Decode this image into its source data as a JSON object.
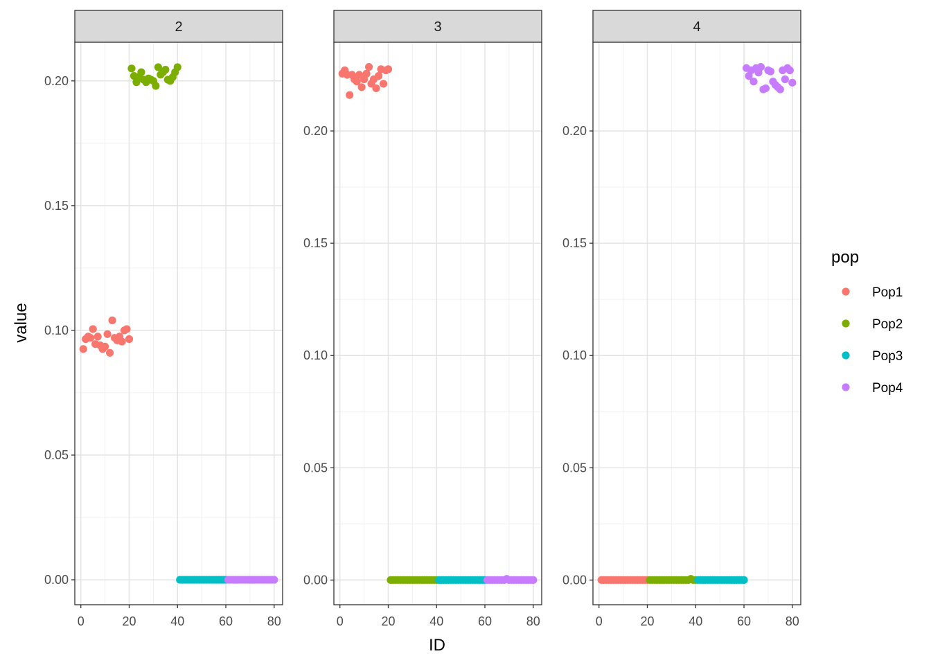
{
  "chart_data": {
    "type": "scatter",
    "facet_by": "K",
    "xlabel": "ID",
    "ylabel": "value",
    "x_ticks": [
      0,
      20,
      40,
      60,
      80
    ],
    "xlim": [
      -2.5,
      83.5
    ],
    "grid": true,
    "legend": {
      "title": "pop",
      "position": "right",
      "entries": [
        {
          "name": "Pop1",
          "color": "#F8766D"
        },
        {
          "name": "Pop2",
          "color": "#7CAE00"
        },
        {
          "name": "Pop3",
          "color": "#00BFC4"
        },
        {
          "name": "Pop4",
          "color": "#C77CFF"
        }
      ]
    },
    "facets": [
      {
        "label": "2",
        "ylim": [
          -0.01,
          0.2155
        ],
        "y_ticks": [
          0.0,
          0.05,
          0.1,
          0.15,
          0.2
        ],
        "y_tick_labels": [
          "0.00",
          "0.05",
          "0.10",
          "0.15",
          "0.20"
        ],
        "series": [
          {
            "pop": "Pop1",
            "x": [
              1,
              2,
              3,
              4,
              5,
              6,
              7,
              8,
              9,
              10,
              11,
              12,
              13,
              14,
              15,
              16,
              17,
              18,
              19,
              20
            ],
            "y": [
              0.0925,
              0.0965,
              0.0975,
              0.097,
              0.1005,
              0.0945,
              0.0975,
              0.094,
              0.0925,
              0.0935,
              0.0985,
              0.091,
              0.104,
              0.097,
              0.096,
              0.0975,
              0.0955,
              0.1,
              0.1005,
              0.0965
            ]
          },
          {
            "pop": "Pop2",
            "x": [
              21,
              22,
              23,
              24,
              25,
              26,
              27,
              28,
              29,
              30,
              31,
              32,
              33,
              34,
              35,
              36,
              37,
              38,
              39,
              40
            ],
            "y": [
              0.205,
              0.202,
              0.1995,
              0.2015,
              0.2035,
              0.2005,
              0.1995,
              0.201,
              0.2005,
              0.2,
              0.198,
              0.2055,
              0.2025,
              0.2035,
              0.2045,
              0.2005,
              0.2,
              0.2015,
              0.2035,
              0.2055
            ]
          },
          {
            "pop": "Pop3",
            "x": [
              41,
              42,
              43,
              44,
              45,
              46,
              47,
              48,
              49,
              50,
              51,
              52,
              53,
              54,
              55,
              56,
              57,
              58,
              59,
              60
            ],
            "y": [
              0,
              0,
              0,
              0,
              0,
              0,
              0,
              0,
              0,
              0,
              0,
              0,
              0,
              0,
              0,
              0,
              0,
              0,
              0,
              0
            ]
          },
          {
            "pop": "Pop4",
            "x": [
              61,
              62,
              63,
              64,
              65,
              66,
              67,
              68,
              69,
              70,
              71,
              72,
              73,
              74,
              75,
              76,
              77,
              78,
              79,
              80
            ],
            "y": [
              0,
              0,
              0,
              0,
              0,
              0,
              0,
              0,
              0,
              0,
              0,
              0,
              0,
              0,
              0,
              0,
              0,
              0,
              0,
              0
            ]
          }
        ]
      },
      {
        "label": "3",
        "ylim": [
          -0.011,
          0.2395
        ],
        "y_ticks": [
          0.0,
          0.05,
          0.1,
          0.15,
          0.2
        ],
        "y_tick_labels": [
          "0.00",
          "0.05",
          "0.10",
          "0.15",
          "0.20"
        ],
        "series": [
          {
            "pop": "Pop1",
            "x": [
              1,
              2,
              3,
              4,
              5,
              6,
              7,
              8,
              9,
              10,
              11,
              12,
              13,
              14,
              15,
              16,
              17,
              18,
              19,
              20
            ],
            "y": [
              0.2255,
              0.227,
              0.225,
              0.216,
              0.225,
              0.223,
              0.222,
              0.225,
              0.2195,
              0.223,
              0.2255,
              0.2285,
              0.221,
              0.223,
              0.219,
              0.2245,
              0.2275,
              0.221,
              0.227,
              0.2275
            ]
          },
          {
            "pop": "Pop2",
            "x": [
              21,
              22,
              23,
              24,
              25,
              26,
              27,
              28,
              29,
              30,
              31,
              32,
              33,
              34,
              35,
              36,
              37,
              38,
              39,
              40
            ],
            "y": [
              0,
              0,
              0,
              0,
              0,
              0,
              0,
              0,
              0,
              0,
              0,
              0,
              0,
              0,
              0,
              0,
              0,
              0,
              0,
              0
            ]
          },
          {
            "pop": "Pop3",
            "x": [
              41,
              42,
              43,
              44,
              45,
              46,
              47,
              48,
              49,
              50,
              51,
              52,
              53,
              54,
              55,
              56,
              57,
              58,
              59,
              60
            ],
            "y": [
              0,
              0,
              0,
              0,
              0,
              0,
              0,
              0,
              0,
              0,
              0,
              0,
              0,
              0,
              0,
              0,
              0,
              0,
              0,
              0
            ]
          },
          {
            "pop": "Pop4",
            "x": [
              61,
              62,
              63,
              64,
              65,
              66,
              67,
              68,
              69,
              70,
              71,
              72,
              73,
              74,
              75,
              76,
              77,
              78,
              79,
              80
            ],
            "y": [
              0,
              0,
              0,
              0,
              0,
              0,
              0,
              0,
              0.0005,
              0,
              0,
              0,
              0,
              0,
              0,
              0,
              0,
              0,
              0,
              0
            ]
          }
        ]
      },
      {
        "label": "4",
        "ylim": [
          -0.011,
          0.2395
        ],
        "y_ticks": [
          0.0,
          0.05,
          0.1,
          0.15,
          0.2
        ],
        "y_tick_labels": [
          "0.00",
          "0.05",
          "0.10",
          "0.15",
          "0.20"
        ],
        "series": [
          {
            "pop": "Pop1",
            "x": [
              1,
              2,
              3,
              4,
              5,
              6,
              7,
              8,
              9,
              10,
              11,
              12,
              13,
              14,
              15,
              16,
              17,
              18,
              19,
              20
            ],
            "y": [
              0,
              0,
              0,
              0,
              0,
              0,
              0,
              0,
              0,
              0,
              0,
              0,
              0,
              0,
              0,
              0,
              0,
              0,
              0,
              0
            ]
          },
          {
            "pop": "Pop2",
            "x": [
              21,
              22,
              23,
              24,
              25,
              26,
              27,
              28,
              29,
              30,
              31,
              32,
              33,
              34,
              35,
              36,
              37,
              38,
              39,
              40
            ],
            "y": [
              0,
              0,
              0,
              0,
              0,
              0,
              0,
              0,
              0,
              0,
              0,
              0,
              0,
              0,
              0,
              0,
              0,
              0.0005,
              0,
              0
            ]
          },
          {
            "pop": "Pop3",
            "x": [
              41,
              42,
              43,
              44,
              45,
              46,
              47,
              48,
              49,
              50,
              51,
              52,
              53,
              54,
              55,
              56,
              57,
              58,
              59,
              60
            ],
            "y": [
              0,
              0,
              0,
              0,
              0,
              0,
              0,
              0,
              0,
              0,
              0,
              0,
              0,
              0,
              0,
              0,
              0,
              0,
              0,
              0
            ]
          },
          {
            "pop": "Pop4",
            "x": [
              61,
              62,
              63,
              64,
              65,
              66,
              67,
              68,
              69,
              70,
              71,
              72,
              73,
              74,
              75,
              76,
              77,
              78,
              79,
              80
            ],
            "y": [
              0.228,
              0.2245,
              0.227,
              0.222,
              0.228,
              0.226,
              0.2285,
              0.2185,
              0.219,
              0.227,
              0.2265,
              0.222,
              0.2205,
              0.2195,
              0.2185,
              0.227,
              0.223,
              0.228,
              0.227,
              0.2215
            ]
          }
        ]
      }
    ]
  }
}
